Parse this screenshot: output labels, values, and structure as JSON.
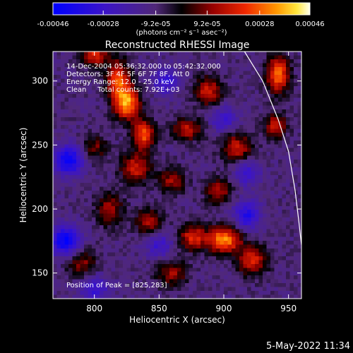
{
  "chart_data": {
    "type": "heatmap",
    "title": "Reconstructed RHESSI Image",
    "xlabel": "Heliocentric X (arcsec)",
    "ylabel": "Heliocentric Y (arcsec)",
    "xlim": [
      768,
      960
    ],
    "ylim": [
      130,
      323
    ],
    "x_ticks": [
      800,
      850,
      900,
      950
    ],
    "y_ticks": [
      150,
      200,
      250,
      300
    ],
    "colorbar": {
      "range": [
        -0.00046,
        0.00046
      ],
      "ticks": [
        -0.00046,
        -0.00028,
        -9.2e-05,
        9.2e-05,
        0.00028,
        0.00046
      ],
      "tick_labels": [
        "-0.00046",
        "-0.00028",
        "-9.2e-05",
        "9.2e-05",
        "0.00028",
        "0.00046"
      ],
      "units_label": "(photons cm⁻² s⁻¹ asec⁻²)"
    },
    "annotations": [
      "14-Dec-2004 05:36:32.000 to 05:42:32.000",
      "Detectors: 3F 4F 5F 6F 7F 8F, Att 0",
      "Energy Range: 12.0 - 25.0 keV",
      "Clean     Total counts: 7.92E+03"
    ],
    "peak_label": "Position of Peak = [825,283]",
    "peak": [
      825,
      283
    ],
    "limb_curve": [
      [
        916,
        323
      ],
      [
        930,
        300
      ],
      [
        942,
        270
      ],
      [
        950,
        245
      ],
      [
        955,
        215
      ],
      [
        958,
        190
      ],
      [
        960,
        172
      ]
    ],
    "sources": [
      {
        "x": 825,
        "y": 283,
        "amp": 0.00046,
        "sx": 7,
        "sy": 9
      },
      {
        "x": 818,
        "y": 302,
        "amp": 0.00034,
        "sx": 6,
        "sy": 10
      },
      {
        "x": 838,
        "y": 258,
        "amp": 0.00036,
        "sx": 6,
        "sy": 8
      },
      {
        "x": 832,
        "y": 232,
        "amp": 0.00028,
        "sx": 8,
        "sy": 8
      },
      {
        "x": 800,
        "y": 320,
        "amp": 0.0003,
        "sx": 7,
        "sy": 6
      },
      {
        "x": 888,
        "y": 292,
        "amp": 0.00028,
        "sx": 7,
        "sy": 8
      },
      {
        "x": 872,
        "y": 262,
        "amp": 0.00026,
        "sx": 8,
        "sy": 6
      },
      {
        "x": 910,
        "y": 248,
        "amp": 0.00027,
        "sx": 8,
        "sy": 8
      },
      {
        "x": 900,
        "y": 176,
        "amp": 0.00044,
        "sx": 9,
        "sy": 7
      },
      {
        "x": 876,
        "y": 178,
        "amp": 0.0003,
        "sx": 7,
        "sy": 7
      },
      {
        "x": 942,
        "y": 305,
        "amp": 0.0004,
        "sx": 6,
        "sy": 10
      },
      {
        "x": 940,
        "y": 265,
        "amp": 0.00026,
        "sx": 6,
        "sy": 7
      },
      {
        "x": 812,
        "y": 200,
        "amp": 0.00022,
        "sx": 7,
        "sy": 9
      },
      {
        "x": 842,
        "y": 190,
        "amp": 0.00024,
        "sx": 7,
        "sy": 7
      },
      {
        "x": 860,
        "y": 222,
        "amp": 0.00022,
        "sx": 7,
        "sy": 7
      },
      {
        "x": 896,
        "y": 214,
        "amp": 0.00023,
        "sx": 7,
        "sy": 7
      },
      {
        "x": 922,
        "y": 160,
        "amp": 0.0003,
        "sx": 8,
        "sy": 8
      },
      {
        "x": 790,
        "y": 158,
        "amp": 0.0002,
        "sx": 8,
        "sy": 8
      },
      {
        "x": 860,
        "y": 150,
        "amp": 0.00022,
        "sx": 8,
        "sy": 7
      },
      {
        "x": 800,
        "y": 248,
        "amp": 0.00018,
        "sx": 7,
        "sy": 7
      },
      {
        "x": 780,
        "y": 238,
        "amp": -0.00034,
        "sx": 8,
        "sy": 8
      },
      {
        "x": 778,
        "y": 175,
        "amp": -0.00036,
        "sx": 8,
        "sy": 8
      },
      {
        "x": 855,
        "y": 300,
        "amp": -0.00022,
        "sx": 7,
        "sy": 7
      },
      {
        "x": 918,
        "y": 195,
        "amp": -0.00026,
        "sx": 7,
        "sy": 8
      },
      {
        "x": 918,
        "y": 228,
        "amp": -0.00018,
        "sx": 7,
        "sy": 7
      },
      {
        "x": 900,
        "y": 270,
        "amp": -0.00018,
        "sx": 7,
        "sy": 7
      },
      {
        "x": 850,
        "y": 172,
        "amp": -0.00018,
        "sx": 7,
        "sy": 7
      },
      {
        "x": 800,
        "y": 138,
        "amp": -0.0002,
        "sx": 8,
        "sy": 7
      }
    ],
    "background_level": -0.0001
  },
  "timestamp": "5-May-2022 11:34"
}
